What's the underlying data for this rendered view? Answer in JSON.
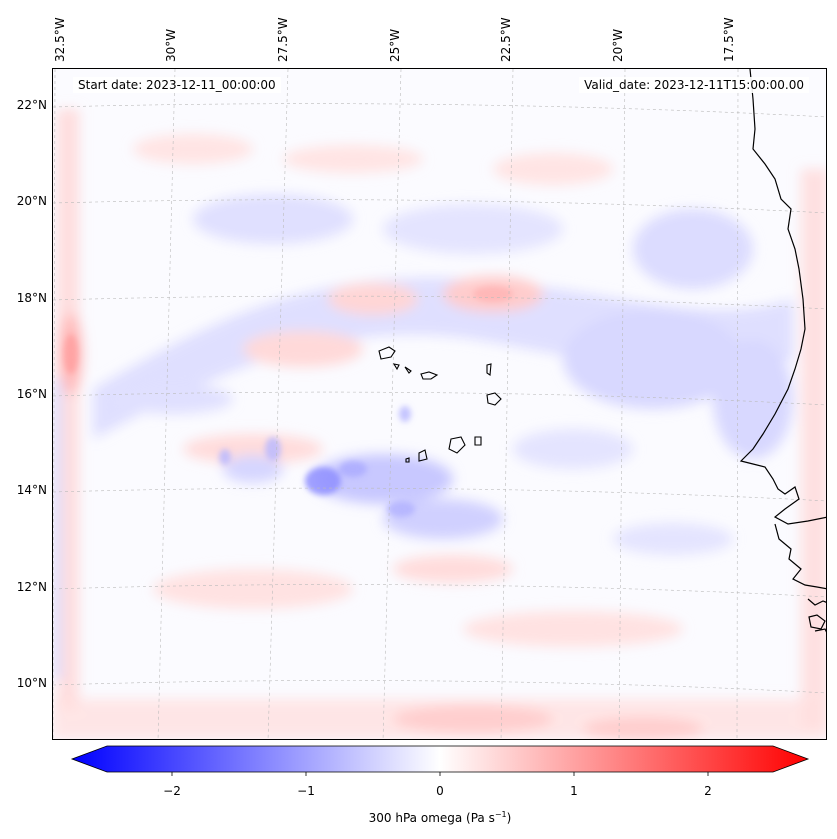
{
  "map": {
    "lon_labels": [
      "32.5°W",
      "30°W",
      "27.5°W",
      "25°W",
      "22.5°W",
      "20°W",
      "17.5°W"
    ],
    "lat_labels": [
      "22°N",
      "20°N",
      "18°N",
      "16°N",
      "14°N",
      "12°N",
      "10°N"
    ],
    "start_date": "Start date: 2023-12-11_00:00:00",
    "valid_date": "Valid_date: 2023-12-11T15:00:00.00"
  },
  "colorbar": {
    "ticks": [
      "−2",
      "−1",
      "0",
      "1",
      "2"
    ],
    "label_prefix": "300 hPa omega (Pa s",
    "label_sup": "−1",
    "label_suffix": ")",
    "low_color": "#0000ff",
    "mid_color": "#ffffff",
    "high_color": "#ff0000"
  }
}
